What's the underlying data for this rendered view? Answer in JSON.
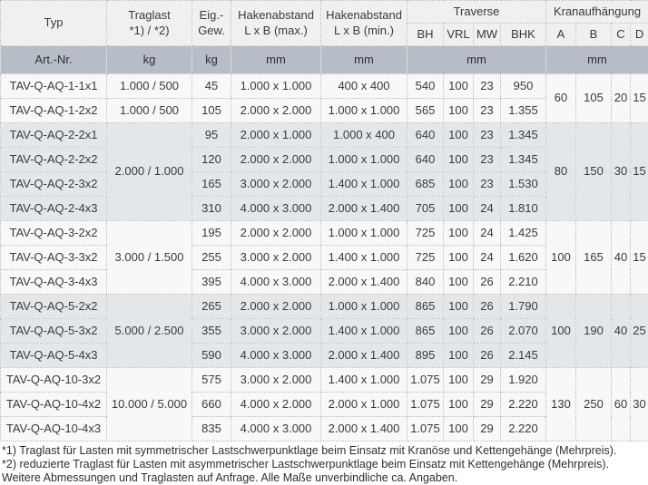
{
  "table": {
    "header": {
      "typ": "Typ",
      "traglast": "Traglast\n*1) / *2)",
      "eig_gew": "Eig.-\nGew.",
      "hak_max": "Hakenabstand\nL x B (max.)",
      "hak_min": "Hakenabstand\nL x B (min.)",
      "traverse": "Traverse",
      "traverse_cols": [
        "BH",
        "VRL",
        "MW",
        "BHK"
      ],
      "kran": "Kranaufhängung",
      "kran_cols": [
        "A",
        "B",
        "C",
        "D"
      ],
      "units": {
        "art_nr": "Art.-Nr.",
        "traglast_unit": "kg",
        "gew_unit": "kg",
        "max_unit": "mm",
        "min_unit": "mm",
        "traverse_unit": "mm",
        "kran_unit": "mm"
      }
    },
    "groups": [
      {
        "shaded": false,
        "traglast_merged": null,
        "kran": [
          "60",
          "105",
          "20",
          "15"
        ],
        "rows": [
          {
            "typ": "TAV-Q-AQ-1-1x1",
            "traglast": "1.000 / 500",
            "gew": "45",
            "max": "1.000 x 1.000",
            "min": "400 x 400",
            "bh": "540",
            "vrl": "100",
            "mw": "23",
            "bhk": "950"
          },
          {
            "typ": "TAV-Q-AQ-1-2x2",
            "traglast": "1.000 / 500",
            "gew": "105",
            "max": "2.000 x 2.000",
            "min": "1.000 x 1.000",
            "bh": "565",
            "vrl": "100",
            "mw": "23",
            "bhk": "1.355"
          }
        ]
      },
      {
        "shaded": true,
        "traglast_merged": "2.000 / 1.000",
        "kran": [
          "80",
          "150",
          "30",
          "15"
        ],
        "rows": [
          {
            "typ": "TAV-Q-AQ-2-2x1",
            "gew": "95",
            "max": "2.000 x 1.000",
            "min": "1.000 x 400",
            "bh": "640",
            "vrl": "100",
            "mw": "23",
            "bhk": "1.345"
          },
          {
            "typ": "TAV-Q-AQ-2-2x2",
            "gew": "120",
            "max": "2.000 x 2.000",
            "min": "1.000 x 1.000",
            "bh": "640",
            "vrl": "100",
            "mw": "23",
            "bhk": "1.345"
          },
          {
            "typ": "TAV-Q-AQ-2-3x2",
            "gew": "165",
            "max": "3.000 x 2.000",
            "min": "1.400 x 1.000",
            "bh": "685",
            "vrl": "100",
            "mw": "23",
            "bhk": "1.530"
          },
          {
            "typ": "TAV-Q-AQ-2-4x3",
            "gew": "310",
            "max": "4.000 x 3.000",
            "min": "2.000 x 1.400",
            "bh": "705",
            "vrl": "100",
            "mw": "24",
            "bhk": "1.810"
          }
        ]
      },
      {
        "shaded": false,
        "traglast_merged": "3.000 / 1.500",
        "kran": [
          "100",
          "165",
          "40",
          "15"
        ],
        "rows": [
          {
            "typ": "TAV-Q-AQ-3-2x2",
            "gew": "195",
            "max": "2.000 x 2.000",
            "min": "1.000 x 1.000",
            "bh": "725",
            "vrl": "100",
            "mw": "24",
            "bhk": "1.425"
          },
          {
            "typ": "TAV-Q-AQ-3-3x2",
            "gew": "255",
            "max": "3.000 x 2.000",
            "min": "1.400 x 1.000",
            "bh": "725",
            "vrl": "100",
            "mw": "24",
            "bhk": "1.620"
          },
          {
            "typ": "TAV-Q-AQ-3-4x3",
            "gew": "395",
            "max": "4.000 x 3.000",
            "min": "2.000 x 1.400",
            "bh": "840",
            "vrl": "100",
            "mw": "26",
            "bhk": "2.210"
          }
        ]
      },
      {
        "shaded": true,
        "traglast_merged": "5.000 / 2.500",
        "kran": [
          "100",
          "190",
          "40",
          "25"
        ],
        "rows": [
          {
            "typ": "TAV-Q-AQ-5-2x2",
            "gew": "265",
            "max": "2.000 x 2.000",
            "min": "1.000 x 1.000",
            "bh": "865",
            "vrl": "100",
            "mw": "26",
            "bhk": "1.790"
          },
          {
            "typ": "TAV-Q-AQ-5-3x2",
            "gew": "355",
            "max": "3.000 x 2.000",
            "min": "1.400 x 1.000",
            "bh": "865",
            "vrl": "100",
            "mw": "26",
            "bhk": "2.070"
          },
          {
            "typ": "TAV-Q-AQ-5-4x3",
            "gew": "590",
            "max": "4.000 x 3.000",
            "min": "2.000 x 1.400",
            "bh": "895",
            "vrl": "100",
            "mw": "26",
            "bhk": "2.145"
          }
        ]
      },
      {
        "shaded": false,
        "traglast_merged": "10.000 / 5.000",
        "kran": [
          "130",
          "250",
          "60",
          "30"
        ],
        "rows": [
          {
            "typ": "TAV-Q-AQ-10-3x2",
            "gew": "575",
            "max": "3.000 x 2.000",
            "min": "1.400 x 1.000",
            "bh": "1.075",
            "vrl": "100",
            "mw": "29",
            "bhk": "1.920"
          },
          {
            "typ": "TAV-Q-AQ-10-4x2",
            "gew": "660",
            "max": "4.000 x 2.000",
            "min": "2.000 x 1.000",
            "bh": "1.075",
            "vrl": "100",
            "mw": "29",
            "bhk": "2.220"
          },
          {
            "typ": "TAV-Q-AQ-10-4x3",
            "gew": "835",
            "max": "4.000 x 3.000",
            "min": "2.000 x 1.400",
            "bh": "1.075",
            "vrl": "100",
            "mw": "29",
            "bhk": "2.220"
          }
        ]
      }
    ]
  },
  "footnotes": [
    "*1) Traglast für Lasten mit symmetrischer Lastschwerpunktlage beim Einsatz mit Kranöse und Kettengehänge (Mehrpreis).",
    "*2) reduzierte Traglast für Lasten mit asymmetrischer Lastschwerpunktlage beim Einsatz mit Kettengehänge (Mehrpreis).",
    "Weitere Abmessungen und Traglasten auf Anfrage. Alle Maße unverbindliche ca. Angaben."
  ],
  "colors": {
    "units_row_bg": "#b6bdc7",
    "header_bg": "#f0f0f1",
    "shaded_row_bg": "#e4e7ea",
    "row_bg": "#f8f8f9",
    "border": "#b5b5b5",
    "text": "#3a3a3a"
  }
}
